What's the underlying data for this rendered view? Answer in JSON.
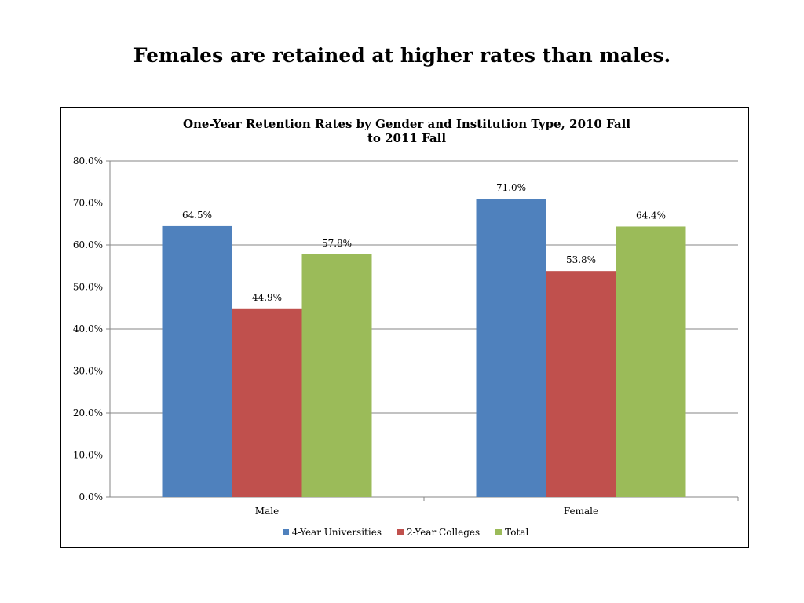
{
  "slide": {
    "title": "Females are retained at higher rates than males."
  },
  "chart_data": {
    "type": "bar",
    "title": "One-Year Retention Rates by Gender and Institution Type, 2010 Fall to 2011 Fall",
    "xlabel": "",
    "ylabel": "",
    "categories": [
      "Male",
      "Female"
    ],
    "series": [
      {
        "name": "4-Year Universities",
        "color": "#4F81BD",
        "values": [
          64.5,
          71.0
        ],
        "labels": [
          "64.5%",
          "71.0%"
        ]
      },
      {
        "name": "2-Year Colleges",
        "color": "#C0504D",
        "values": [
          44.9,
          53.8
        ],
        "labels": [
          "44.9%",
          "53.8%"
        ]
      },
      {
        "name": "Total",
        "color": "#9BBB59",
        "values": [
          57.8,
          64.4
        ],
        "labels": [
          "57.8%",
          "64.4%"
        ]
      }
    ],
    "ylim": [
      0,
      80
    ],
    "yticks": [
      "0.0%",
      "10.0%",
      "20.0%",
      "30.0%",
      "40.0%",
      "50.0%",
      "60.0%",
      "70.0%",
      "80.0%"
    ],
    "grid": true,
    "legend_position": "bottom"
  }
}
